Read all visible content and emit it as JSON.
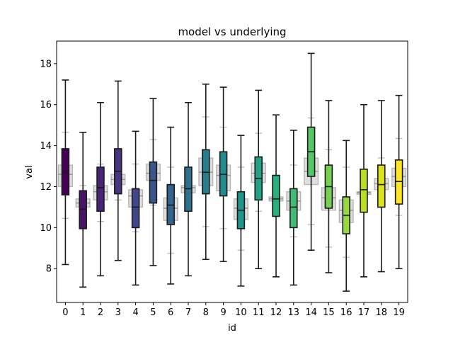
{
  "chart_data": {
    "type": "box",
    "title": "model vs underlying",
    "xlabel": "id",
    "ylabel": "val",
    "ylim": [
      6.35,
      19.1
    ],
    "yticks": [
      8,
      10,
      12,
      14,
      16,
      18
    ],
    "categories": [
      "0",
      "1",
      "2",
      "3",
      "4",
      "5",
      "6",
      "7",
      "8",
      "9",
      "10",
      "11",
      "12",
      "13",
      "14",
      "15",
      "16",
      "17",
      "18",
      "19"
    ],
    "colors": [
      "#440154",
      "#481467",
      "#482576",
      "#453781",
      "#3f4788",
      "#39558c",
      "#32648e",
      "#2d718e",
      "#287d8e",
      "#238a8d",
      "#1f968b",
      "#20a386",
      "#29af7f",
      "#3dbc74",
      "#56c667",
      "#75d054",
      "#95d840",
      "#bade28",
      "#dde318",
      "#fde725"
    ],
    "series": [
      {
        "name": "model",
        "boxes": [
          {
            "whislo": 8.2,
            "q1": 11.6,
            "med": 12.7,
            "q3": 13.85,
            "whishi": 17.2
          },
          {
            "whislo": 7.1,
            "q1": 9.95,
            "med": 10.9,
            "q3": 11.8,
            "whishi": 14.65
          },
          {
            "whislo": 7.65,
            "q1": 10.8,
            "med": 11.95,
            "q3": 12.95,
            "whishi": 16.1
          },
          {
            "whislo": 8.4,
            "q1": 11.65,
            "med": 12.75,
            "q3": 13.85,
            "whishi": 17.15
          },
          {
            "whislo": 7.2,
            "q1": 10.0,
            "med": 11.0,
            "q3": 11.9,
            "whishi": 14.7
          },
          {
            "whislo": 8.15,
            "q1": 11.2,
            "med": 12.3,
            "q3": 13.2,
            "whishi": 16.3
          },
          {
            "whislo": 7.25,
            "q1": 10.15,
            "med": 11.1,
            "q3": 12.1,
            "whishi": 14.9
          },
          {
            "whislo": 7.65,
            "q1": 10.8,
            "med": 11.9,
            "q3": 12.95,
            "whishi": 16.1
          },
          {
            "whislo": 8.45,
            "q1": 11.65,
            "med": 12.7,
            "q3": 13.8,
            "whishi": 17.0
          },
          {
            "whislo": 8.35,
            "q1": 11.55,
            "med": 12.6,
            "q3": 13.7,
            "whishi": 16.85
          },
          {
            "whislo": 7.15,
            "q1": 9.95,
            "med": 10.85,
            "q3": 11.75,
            "whishi": 14.5
          },
          {
            "whislo": 8.0,
            "q1": 11.35,
            "med": 12.4,
            "q3": 13.45,
            "whishi": 16.7
          },
          {
            "whislo": 7.6,
            "q1": 10.55,
            "med": 11.4,
            "q3": 12.55,
            "whishi": 15.5
          },
          {
            "whislo": 7.2,
            "q1": 10.0,
            "med": 11.0,
            "q3": 11.9,
            "whishi": 14.75
          },
          {
            "whislo": 8.9,
            "q1": 12.5,
            "med": 13.7,
            "q3": 14.9,
            "whishi": 18.5
          },
          {
            "whislo": 7.8,
            "q1": 10.95,
            "med": 12.0,
            "q3": 13.05,
            "whishi": 16.2
          },
          {
            "whislo": 6.9,
            "q1": 9.7,
            "med": 10.6,
            "q3": 11.5,
            "whishi": 14.25
          },
          {
            "whislo": 7.6,
            "q1": 10.75,
            "med": 11.85,
            "q3": 12.85,
            "whishi": 16.0
          },
          {
            "whislo": 7.85,
            "q1": 11.0,
            "med": 12.1,
            "q3": 13.05,
            "whishi": 16.2
          },
          {
            "whislo": 8.0,
            "q1": 11.15,
            "med": 12.25,
            "q3": 13.3,
            "whishi": 16.45
          }
        ]
      },
      {
        "name": "underlying",
        "boxes": [
          {
            "whislo": 10.45,
            "q1": 12.0,
            "med": 12.6,
            "q3": 13.05,
            "whishi": 14.65
          },
          {
            "whislo": 10.4,
            "q1": 11.0,
            "med": 11.2,
            "q3": 11.4,
            "whishi": 12.05
          },
          {
            "whislo": 10.3,
            "q1": 11.35,
            "med": 11.75,
            "q3": 12.05,
            "whishi": 13.1
          },
          {
            "whislo": 11.35,
            "q1": 12.1,
            "med": 12.35,
            "q3": 12.6,
            "whishi": 13.25
          },
          {
            "whislo": 9.8,
            "q1": 11.0,
            "med": 11.55,
            "q3": 11.85,
            "whishi": 13.1
          },
          {
            "whislo": 11.1,
            "q1": 12.3,
            "med": 12.65,
            "q3": 13.1,
            "whishi": 14.3
          },
          {
            "whislo": 8.75,
            "q1": 10.35,
            "med": 10.95,
            "q3": 11.45,
            "whishi": 12.95
          },
          {
            "whislo": 11.45,
            "q1": 11.7,
            "med": 11.95,
            "q3": 12.05,
            "whishi": 12.35
          },
          {
            "whislo": 10.05,
            "q1": 12.05,
            "med": 12.7,
            "q3": 13.4,
            "whishi": 15.4
          },
          {
            "whislo": 9.95,
            "q1": 11.8,
            "med": 12.55,
            "q3": 13.05,
            "whishi": 14.9
          },
          {
            "whislo": 8.9,
            "q1": 10.4,
            "med": 10.95,
            "q3": 11.4,
            "whishi": 12.95
          },
          {
            "whislo": 10.8,
            "q1": 12.2,
            "med": 12.65,
            "q3": 13.15,
            "whishi": 14.6
          },
          {
            "whislo": 11.2,
            "q1": 11.3,
            "med": 11.4,
            "q3": 11.5,
            "whishi": 11.6
          },
          {
            "whislo": 9.55,
            "q1": 10.85,
            "med": 11.3,
            "q3": 11.75,
            "whishi": 13.05
          },
          {
            "whislo": 10.15,
            "q1": 12.1,
            "med": 12.75,
            "q3": 13.4,
            "whishi": 15.35
          },
          {
            "whislo": 9.05,
            "q1": 10.85,
            "med": 11.45,
            "q3": 11.95,
            "whishi": 13.8
          },
          {
            "whislo": 8.55,
            "q1": 10.25,
            "med": 10.85,
            "q3": 11.35,
            "whishi": 12.95
          },
          {
            "whislo": 11.5,
            "q1": 11.62,
            "med": 11.7,
            "q3": 11.75,
            "whishi": 11.85
          },
          {
            "whislo": 11.0,
            "q1": 11.85,
            "med": 12.15,
            "q3": 12.4,
            "whishi": 13.4
          },
          {
            "whislo": 10.6,
            "q1": 12.0,
            "med": 12.5,
            "q3": 12.9,
            "whishi": 14.35
          }
        ]
      }
    ]
  }
}
